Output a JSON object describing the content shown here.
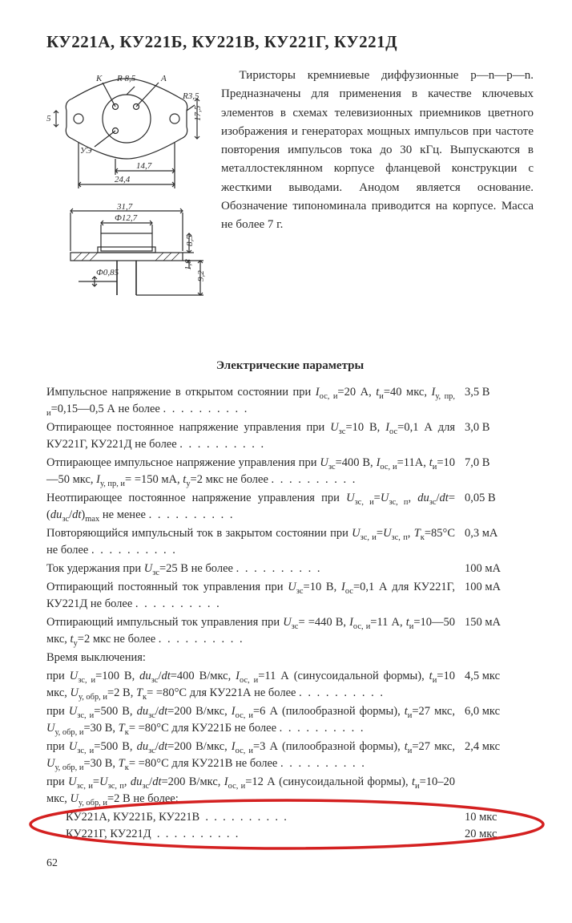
{
  "title": "КУ221А, КУ221Б, КУ221В, КУ221Г, КУ221Д",
  "intro": "Тиристоры кремниевые диффузионные p—n—p—n. Предназначены для применения в качестве ключевых элементов в схемах телевизионных приемников цветного изображения и генераторах мощных импульсов при частоте повторения импульсов тока до 30 кГц. Выпускаются в металлостеклянном корпусе фланцевой конструкции с жесткими выводами. Анодом является основание. Обозначение типономинала приводится на корпусе. Масса не более 7 г.",
  "diagram": {
    "labels": {
      "K": "К",
      "A": "А",
      "UE": "УЭ"
    },
    "dims_top": {
      "R85": "R 8,5",
      "R35": "R3,5",
      "h5": "5",
      "h175": "17,5",
      "w147": "14,7",
      "w244": "24,4"
    },
    "dims_bot": {
      "w317": "31,7",
      "d127": "Ф12,7",
      "d085": "Ф0,85",
      "h85": "8,5",
      "h18": "1,8",
      "h92": "9,2"
    },
    "stroke": "#2a2a2a",
    "hatch": "#2a2a2a",
    "fontsize": 11
  },
  "section_head": "Электрические параметры",
  "params": [
    {
      "text": "Импульсное напряжение в открытом состоянии при <i>I</i><sub>ос, и</sub>=20 А, <i>t</i><sub>и</sub>=40 мкс, <i>I</i><sub>у, пр, и</sub>=0,15—0,5 А не более",
      "val": "3,5 В"
    },
    {
      "text": "Отпирающее постоянное напряжение управления при <i>U</i><sub>зс</sub>=10 В, <i>I</i><sub>ос</sub>=0,1 А для КУ221Г, КУ221Д не более",
      "val": "3,0 В"
    },
    {
      "text": "Отпирающее импульсное напряжение управления при <i>U</i><sub>зс</sub>=400 В, <i>I</i><sub>ос, и</sub>=11А, <i>t</i><sub>и</sub>=10—50 мкс, <i>I</i><sub>у, пр, и</sub>= =150 мА, <i>t</i><sub>у</sub>=2 мкс не более",
      "val": "7,0 В"
    },
    {
      "text": "Неотпирающее постоянное напряжение управления при <i>U</i><sub>зс, и</sub>=<i>U</i><sub>зс, п</sub>, <i>du</i><sub>зс</sub>/<i>dt</i>=(<i>du</i><sub>зс</sub>/<i>dt</i>)<sub>max</sub> не менее",
      "val": "0,05 В"
    },
    {
      "text": "Повторяющийся импульсный ток в закрытом состоянии при <i>U</i><sub>зс, и</sub>=<i>U</i><sub>зс, п</sub>, <i>T</i><sub>к</sub>=85°С не более",
      "val": "0,3 мА"
    },
    {
      "text": "Ток удержания при <i>U</i><sub>зс</sub>=25 В не более",
      "val": "100 мА"
    },
    {
      "text": "Отпирающий постоянный ток управления при <i>U</i><sub>зс</sub>=10 В, <i>I</i><sub>ос</sub>=0,1 А для КУ221Г, КУ221Д не более",
      "val": "100 мА"
    },
    {
      "text": "Отпирающий импульсный ток управления при <i>U</i><sub>зс</sub>= =440 В, <i>I</i><sub>ос, и</sub>=11 А, <i>t</i><sub>и</sub>=10—50 мкс, <i>t</i><sub>у</sub>=2 мкс не более",
      "val": "150 мА"
    }
  ],
  "time_off_head": "Время выключения:",
  "time_off": [
    {
      "text": "при <i>U</i><sub>зс, и</sub>=100 В, <i>du</i><sub>зс</sub>/<i>dt</i>=400 В/мкс, <i>I</i><sub>ос, и</sub>=11 А (синусоидальной формы), <i>t</i><sub>и</sub>=10 мкс, <i>U</i><sub>у, обр, и</sub>=2 В, <i>T</i><sub>к</sub>= =80°С для КУ221А не более",
      "val": "4,5 мкс"
    },
    {
      "text": "при <i>U</i><sub>зс, и</sub>=500 В, <i>du</i><sub>зс</sub>/<i>dt</i>=200 В/мкс, <i>I</i><sub>ос, и</sub>=6 А (пилообразной формы), <i>t</i><sub>и</sub>=27 мкс, <i>U</i><sub>у, обр, и</sub>=30 В, <i>T</i><sub>к</sub>= =80°С для КУ221Б не более",
      "val": "6,0 мкс"
    },
    {
      "text": "при <i>U</i><sub>зс, и</sub>=500 В, <i>du</i><sub>зс</sub>/<i>dt</i>=200 В/мкс, <i>I</i><sub>ос, и</sub>=3 А (пилообразной формы), <i>t</i><sub>и</sub>=27 мкс, <i>U</i><sub>у, обр, и</sub>=30 В, <i>T</i><sub>к</sub>= =80°С для КУ221В не более",
      "val": "2,4 мкс"
    },
    {
      "text": "при <i>U</i><sub>зс, и</sub>=<i>U</i><sub>зс, п</sub>, <i>du</i><sub>зс</sub>/<i>dt</i>=200 В/мкс, <i>I</i><sub>ос, и</sub>=12 А (синусоидальной формы), <i>t</i><sub>и</sub>=10–20 мкс, <i>U</i><sub>у, обр, и</sub>=2 В не более:",
      "val": ""
    }
  ],
  "circled_rows": [
    {
      "text": "КУ221А, КУ221Б, КУ221В",
      "val": "10 мкс"
    },
    {
      "text": "КУ221Г, КУ221Д",
      "val": "20 мкс"
    }
  ],
  "circle_color": "#d42020",
  "pagenum": "62"
}
